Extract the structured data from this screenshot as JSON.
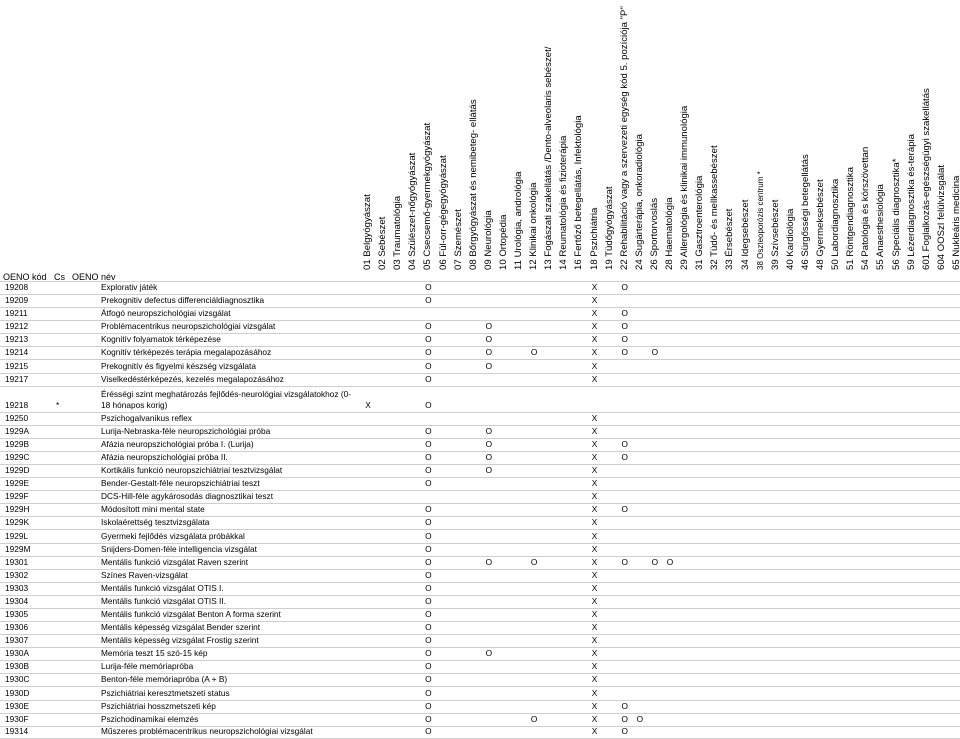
{
  "header": {
    "code_label": "OENO kód",
    "cs_label": "Cs",
    "name_label": "OENO név",
    "columns": [
      {
        "code": "01",
        "label": "01 Belgyógyászat"
      },
      {
        "code": "02",
        "label": "02 Sebészet"
      },
      {
        "code": "03",
        "label": "03 Traumatológia"
      },
      {
        "code": "04",
        "label": "04 Szülészet-nőgyógyászat"
      },
      {
        "code": "05",
        "label": "05 Csecsemő-gyermekgyógyászat"
      },
      {
        "code": "06",
        "label": "06 Fül-orr-gégegyógyászat"
      },
      {
        "code": "07",
        "label": "07 Szemészet"
      },
      {
        "code": "08",
        "label": "08 Bőrgyógyászat és nemibeteg- ellátás"
      },
      {
        "code": "09",
        "label": "09 Neurológia"
      },
      {
        "code": "10",
        "label": "10 Ortopédia"
      },
      {
        "code": "11",
        "label": "11 Urológia, andrológia"
      },
      {
        "code": "12",
        "label": "12 Klinikai onkológia"
      },
      {
        "code": "13",
        "label": "13 Fogászati szakellátás /Dento-alveolaris sebészet/"
      },
      {
        "code": "14",
        "label": "14 Reumatológia és fizioterápia"
      },
      {
        "code": "16",
        "label": "16 Fertőző betegellátás, Infektológia"
      },
      {
        "code": "18",
        "label": "18 Pszichiátria"
      },
      {
        "code": "19",
        "label": "19 Tüdőgyógyászat"
      },
      {
        "code": "22",
        "label": "22 Rehabilitáció vagy a szervezeti egység kód 5. pozíciója \"P\""
      },
      {
        "code": "24",
        "label": "24 Sugárterápia, onkoradiológia"
      },
      {
        "code": "26",
        "label": "26 Sportorvoslás"
      },
      {
        "code": "28",
        "label": "28 Haematológia"
      },
      {
        "code": "29",
        "label": "29 Allergológia és klinikai immunológia"
      },
      {
        "code": "31",
        "label": "31 Gasztroenterológia"
      },
      {
        "code": "32",
        "label": "32 Tüdő- és mellkassebészet"
      },
      {
        "code": "33",
        "label": "33 Érsebészet"
      },
      {
        "code": "34",
        "label": "34 Idegsebészet"
      },
      {
        "code": "38",
        "label": "38 Oszteoporózis centrum *"
      },
      {
        "code": "39",
        "label": "39 Szívsebészet"
      },
      {
        "code": "40",
        "label": "40 Kardiológia"
      },
      {
        "code": "46",
        "label": "46 Sürgősségi betegellátás"
      },
      {
        "code": "48",
        "label": "48 Gyermeksebészet"
      },
      {
        "code": "50",
        "label": "50 Labordiagnosztika"
      },
      {
        "code": "51",
        "label": "51 Röntgendiagnosztika"
      },
      {
        "code": "54",
        "label": "54 Patológia és kórszövettan"
      },
      {
        "code": "55",
        "label": "55 Anaesthesiológia"
      },
      {
        "code": "56",
        "label": "56 Speciális diagnosztika*"
      },
      {
        "code": "59",
        "label": "59 Lézerdiagnosztika és-terápia"
      },
      {
        "code": "601",
        "label": "601 Foglalkozás-egészségügyi szakellátás"
      },
      {
        "code": "604",
        "label": "604 OOSzI felülvizsgálat"
      },
      {
        "code": "65",
        "label": "65 Nukleáris medicina"
      },
      {
        "code": "A2",
        "label": "A2 Klinikai genetika"
      }
    ]
  },
  "rows": [
    {
      "code": "19208",
      "cs": "",
      "name": "Explorativ játék",
      "marks": {
        "05": "O",
        "18": "X",
        "22": "O"
      }
    },
    {
      "code": "19209",
      "cs": "",
      "name": "Prekognitiv defectus differenciáldiagnosztika",
      "marks": {
        "05": "O",
        "18": "X"
      }
    },
    {
      "code": "19211",
      "cs": "",
      "name": "Átfogó neuropszichológiai vizsgálat",
      "marks": {
        "18": "X",
        "22": "O"
      }
    },
    {
      "code": "19212",
      "cs": "",
      "name": "Problémacentrikus neuropszichológiai vizsgálat",
      "marks": {
        "05": "O",
        "09": "O",
        "18": "X",
        "22": "O"
      }
    },
    {
      "code": "19213",
      "cs": "",
      "name": "Kognitív folyamatok térképezése",
      "marks": {
        "05": "O",
        "09": "O",
        "18": "X",
        "22": "O"
      }
    },
    {
      "code": "19214",
      "cs": "",
      "name": "Kognitív térképezés terápia megalapozásához",
      "marks": {
        "05": "O",
        "09": "O",
        "12": "O",
        "18": "X",
        "22": "O",
        "26": "O"
      }
    },
    {
      "code": "19215",
      "cs": "",
      "name": "Prekognitív és figyelmi készség vizsgálata",
      "marks": {
        "05": "O",
        "09": "O",
        "18": "X"
      }
    },
    {
      "code": "19217",
      "cs": "",
      "name": "Viselkedéstérképezés, kezelés megalapozásához",
      "marks": {
        "05": "O",
        "18": "X"
      }
    },
    {
      "code": "19218",
      "cs": "*",
      "name": "Érésségi szint meghatározás fejlődés-neurológiai vizsgálatokhoz (0-18 hónapos korig)",
      "tall": true,
      "marks": {
        "01": "X",
        "05": "O"
      }
    },
    {
      "code": "19250",
      "cs": "",
      "name": "Pszichogalvanikus reflex",
      "marks": {
        "18": "X"
      }
    },
    {
      "code": "1929A",
      "cs": "",
      "name": "Lurija-Nebraska-féle neuropszichológiai próba",
      "marks": {
        "05": "O",
        "09": "O",
        "18": "X"
      }
    },
    {
      "code": "1929B",
      "cs": "",
      "name": "Afázia neuropszichológiai próba I. (Lurija)",
      "marks": {
        "05": "O",
        "09": "O",
        "18": "X",
        "22": "O"
      }
    },
    {
      "code": "1929C",
      "cs": "",
      "name": "Afázia neuropszichológiai próba II.",
      "marks": {
        "05": "O",
        "09": "O",
        "18": "X",
        "22": "O"
      }
    },
    {
      "code": "1929D",
      "cs": "",
      "name": "Kortikális funkció neuropszichiátriai tesztvizsgálat",
      "marks": {
        "05": "O",
        "09": "O",
        "18": "X"
      }
    },
    {
      "code": "1929E",
      "cs": "",
      "name": "Bender-Gestalt-féle neuropszichiátriai teszt",
      "marks": {
        "05": "O",
        "18": "X"
      }
    },
    {
      "code": "1929F",
      "cs": "",
      "name": "DCS-Hill-féle agykárosodás diagnosztikai teszt",
      "marks": {
        "18": "X"
      }
    },
    {
      "code": "1929H",
      "cs": "",
      "name": "Módosított mini mental state",
      "marks": {
        "05": "O",
        "18": "X",
        "22": "O"
      }
    },
    {
      "code": "1929K",
      "cs": "",
      "name": "Iskolaérettség tesztvizsgálata",
      "marks": {
        "05": "O",
        "18": "X"
      }
    },
    {
      "code": "1929L",
      "cs": "",
      "name": "Gyermeki fejlődés vizsgálata próbákkal",
      "marks": {
        "05": "O",
        "18": "X"
      }
    },
    {
      "code": "1929M",
      "cs": "",
      "name": "Snijders-Domen-féle intelligencia vizsgálat",
      "marks": {
        "05": "O",
        "18": "X"
      }
    },
    {
      "code": "19301",
      "cs": "",
      "name": "Mentális funkció vizsgálat Raven szerint",
      "marks": {
        "05": "O",
        "09": "O",
        "12": "O",
        "18": "X",
        "22": "O",
        "26": "O",
        "28": "O"
      }
    },
    {
      "code": "19302",
      "cs": "",
      "name": "Színes Raven-vizsgálat",
      "marks": {
        "05": "O",
        "18": "X"
      }
    },
    {
      "code": "19303",
      "cs": "",
      "name": "Mentális funkció vizsgálat OTIS I.",
      "marks": {
        "05": "O",
        "18": "X"
      }
    },
    {
      "code": "19304",
      "cs": "",
      "name": "Mentális funkció vizsgálat OTIS II.",
      "marks": {
        "05": "O",
        "18": "X"
      }
    },
    {
      "code": "19305",
      "cs": "",
      "name": "Mentális funkció vizsgálat Benton A forma szerint",
      "marks": {
        "05": "O",
        "18": "X"
      }
    },
    {
      "code": "19306",
      "cs": "",
      "name": "Mentális képesség vizsgálat Bender szerint",
      "marks": {
        "05": "O",
        "18": "X"
      }
    },
    {
      "code": "19307",
      "cs": "",
      "name": "Mentális képesség vizsgálat Frostig szerint",
      "marks": {
        "05": "O",
        "18": "X"
      }
    },
    {
      "code": "1930A",
      "cs": "",
      "name": "Memória teszt 15 szó-15 kép",
      "marks": {
        "05": "O",
        "09": "O",
        "18": "X"
      }
    },
    {
      "code": "1930B",
      "cs": "",
      "name": "Lurija-féle memóriapróba",
      "marks": {
        "05": "O",
        "18": "X"
      }
    },
    {
      "code": "1930C",
      "cs": "",
      "name": "Benton-féle memóriapróba (A + B)",
      "marks": {
        "05": "O",
        "18": "X"
      }
    },
    {
      "code": "1930D",
      "cs": "",
      "name": "Pszichiátriai keresztmetszeti status",
      "marks": {
        "05": "O",
        "18": "X"
      }
    },
    {
      "code": "1930E",
      "cs": "",
      "name": "Pszichiátriai hosszmetszeti kép",
      "marks": {
        "05": "O",
        "18": "X",
        "22": "O"
      }
    },
    {
      "code": "1930F",
      "cs": "",
      "name": "Pszichodinamikai elemzés",
      "marks": {
        "05": "O",
        "12": "O",
        "18": "X",
        "22": "O",
        "24": "O"
      }
    },
    {
      "code": "19314",
      "cs": "",
      "name": "Műszeres problémacentrikus neuropszichológiai vizsgálat",
      "marks": {
        "05": "O",
        "18": "X",
        "22": "O"
      }
    }
  ]
}
